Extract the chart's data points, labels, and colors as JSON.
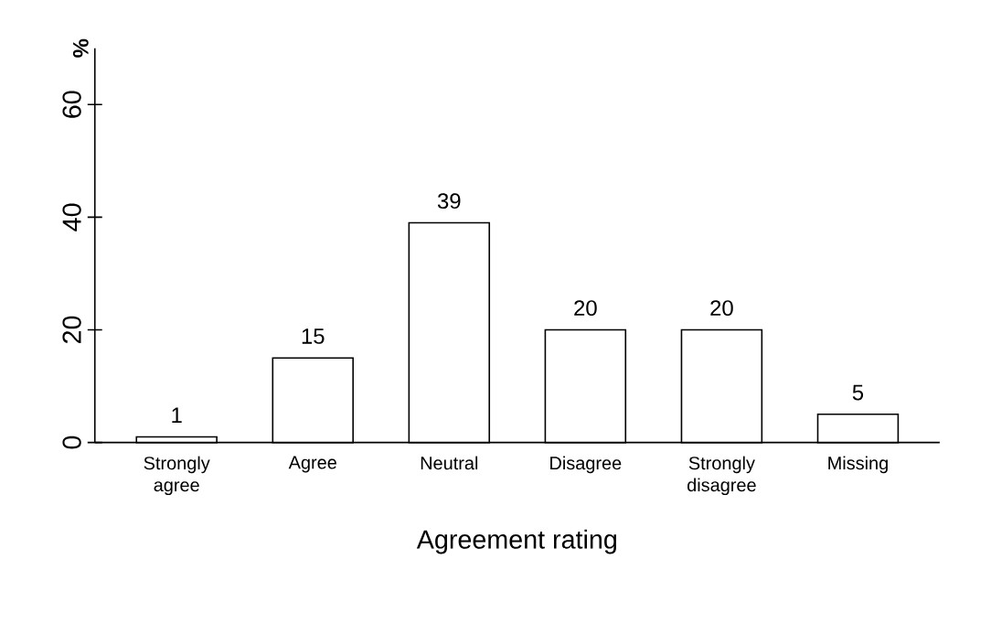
{
  "chart_data": {
    "type": "bar",
    "xlabel": "Agreement rating",
    "ylabel": "%",
    "categories": [
      "Strongly agree",
      "Agree",
      "Neutral",
      "Disagree",
      "Strongly disagree",
      "Missing"
    ],
    "values": [
      1,
      15,
      39,
      20,
      20,
      5
    ],
    "color": "#ffffff",
    "data_labels": true,
    "ylim": [
      0,
      70
    ],
    "yticks": [
      0,
      20,
      40,
      60
    ]
  }
}
